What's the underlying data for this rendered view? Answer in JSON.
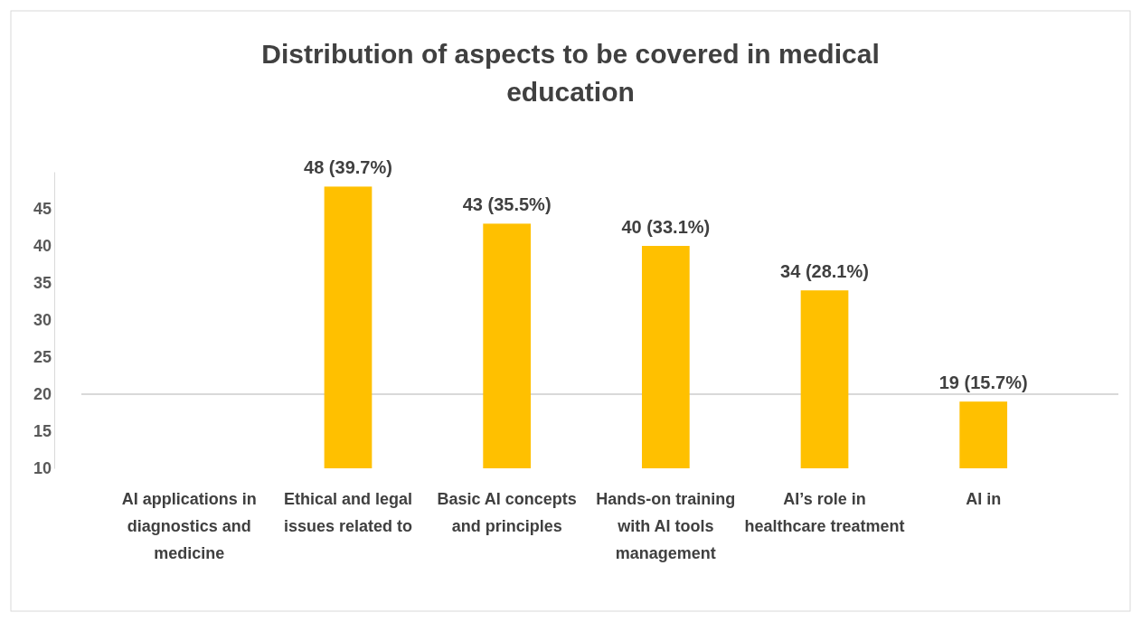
{
  "chart_data": {
    "type": "bar",
    "title": "Distribution of aspects to be covered in medical education",
    "categories": [
      "AI applications in diagnostics and medicine",
      "Ethical and legal issues related to",
      "Basic AI concepts and principles",
      "Hands-on training with AI tools management",
      "AI’s role in healthcare treatment",
      "AI in"
    ],
    "values": [
      null,
      48,
      43,
      40,
      34,
      19
    ],
    "value_labels": [
      null,
      "48 (39.7%)",
      "43 (35.5%)",
      "40 (33.1%)",
      "34 (28.1%)",
      "19 (15.7%)"
    ],
    "color": "#ffc000",
    "ylim": [
      10,
      50
    ],
    "yticks": [
      10,
      15,
      20,
      25,
      30,
      35,
      40,
      45
    ],
    "ref_lines": [
      {
        "axis": "y",
        "value": 20,
        "color": "#d9d9d9"
      }
    ],
    "grid": false
  }
}
